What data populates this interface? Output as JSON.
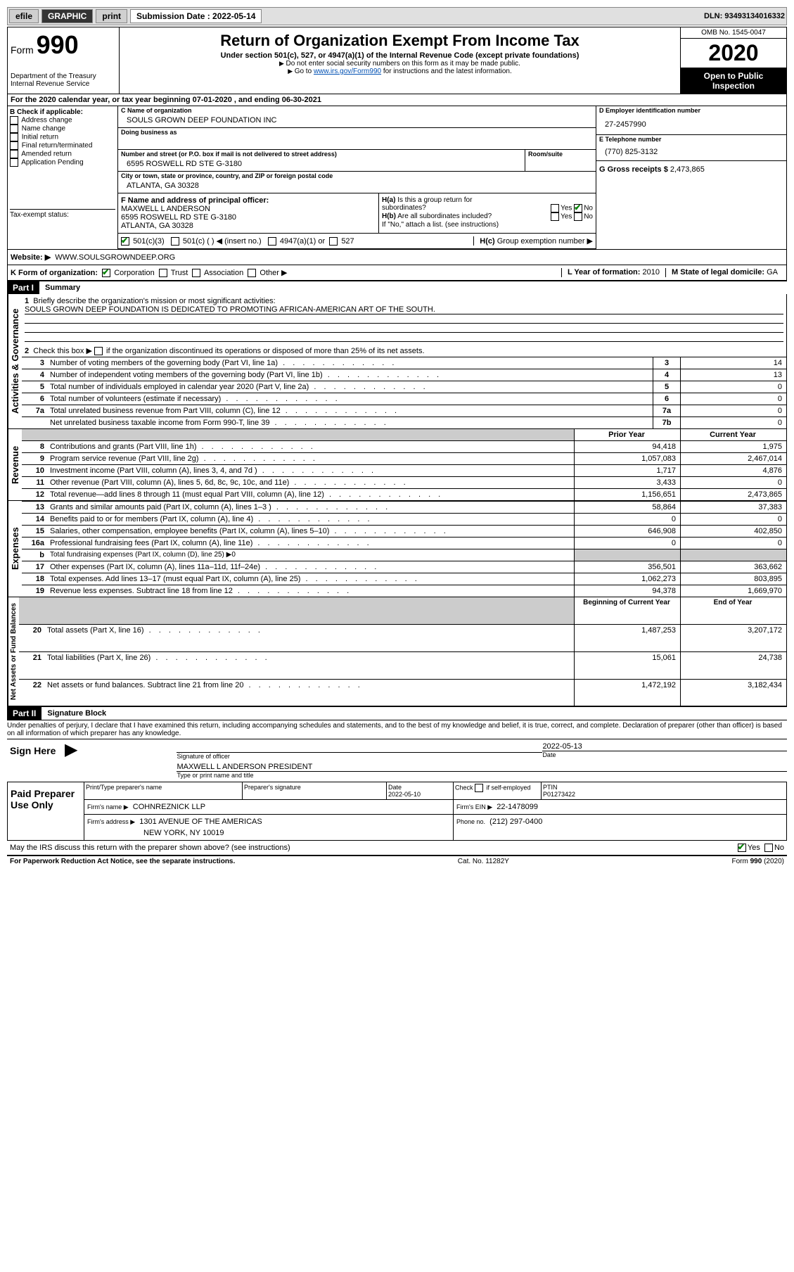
{
  "top": {
    "efile": "efile",
    "graphic": "GRAPHIC",
    "print": "print",
    "sub_label": "Submission Date : 2022-05-14",
    "dln": "DLN: 93493134016332"
  },
  "header": {
    "form": "Form",
    "num": "990",
    "dept": "Department of the Treasury",
    "irs": "Internal Revenue Service",
    "title": "Return of Organization Exempt From Income Tax",
    "sub": "Under section 501(c), 527, or 4947(a)(1) of the Internal Revenue Code (except private foundations)",
    "note1": "Do not enter social security numbers on this form as it may be made public.",
    "note2_pre": "Go to ",
    "note2_link": "www.irs.gov/Form990",
    "note2_post": " for instructions and the latest information.",
    "omb": "OMB No. 1545-0047",
    "year": "2020",
    "insp": "Open to Public Inspection"
  },
  "line_a": "For the 2020 calendar year, or tax year beginning 07-01-2020   , and ending 06-30-2021",
  "box_b": {
    "label": "B Check if applicable:",
    "opts": [
      "Address change",
      "Name change",
      "Initial return",
      "Final return/terminated",
      "Amended return",
      "Application Pending"
    ]
  },
  "box_c": {
    "name_label": "C Name of organization",
    "name": "SOULS GROWN DEEP FOUNDATION INC",
    "dba_label": "Doing business as",
    "street_label": "Number and street (or P.O. box if mail is not delivered to street address)",
    "room_label": "Room/suite",
    "street": "6595 ROSWELL RD STE G-3180",
    "city_label": "City or town, state or province, country, and ZIP or foreign postal code",
    "city": "ATLANTA, GA  30328"
  },
  "box_d": {
    "label": "D Employer identification number",
    "val": "27-2457990"
  },
  "box_e": {
    "label": "E Telephone number",
    "val": "(770) 825-3132"
  },
  "box_g": {
    "label": "G Gross receipts $",
    "val": "2,473,865"
  },
  "box_f": {
    "label": "F Name and address of principal officer:",
    "name": "MAXWELL L ANDERSON",
    "line2": "6595 ROSWELL RD STE G-3180",
    "line3": "ATLANTA, GA  30328"
  },
  "box_h": {
    "a": "Is this a group return for",
    "a2": "subordinates?",
    "b": "Are all subordinates included?",
    "note": "If \"No,\" attach a list. (see instructions)",
    "c": "Group exemption number ▶"
  },
  "tax_exempt": {
    "label": "Tax-exempt status:",
    "opt1": "501(c)(3)",
    "opt2": "501(c) (  ) ◀ (insert no.)",
    "opt3": "4947(a)(1) or",
    "opt4": "527"
  },
  "website": {
    "label": "Website: ▶",
    "val": "WWW.SOULSGROWNDEEP.ORG"
  },
  "box_k": {
    "label": "K Form of organization:",
    "opts": [
      "Corporation",
      "Trust",
      "Association",
      "Other ▶"
    ]
  },
  "box_l": {
    "label": "L Year of formation:",
    "val": "2010"
  },
  "box_m": {
    "label": "M State of legal domicile:",
    "val": "GA"
  },
  "part1": {
    "header": "Part I",
    "title": "Summary",
    "q1": "Briefly describe the organization's mission or most significant activities:",
    "q1_val": "SOULS GROWN DEEP FOUNDATION IS DEDICATED TO PROMOTING AFRICAN-AMERICAN ART OF THE SOUTH.",
    "q2": "Check this box ▶    if the organization discontinued its operations or disposed of more than 25% of its net assets.",
    "section_ag": "Activities & Governance",
    "section_rev": "Revenue",
    "section_exp": "Expenses",
    "section_net": "Net Assets or Fund Balances",
    "col_prior": "Prior Year",
    "col_current": "Current Year",
    "col_begin": "Beginning of Current Year",
    "col_end": "End of Year",
    "rows_ag": [
      {
        "n": "3",
        "t": "Number of voting members of the governing body (Part VI, line 1a)",
        "c": "3",
        "v": "14"
      },
      {
        "n": "4",
        "t": "Number of independent voting members of the governing body (Part VI, line 1b)",
        "c": "4",
        "v": "13"
      },
      {
        "n": "5",
        "t": "Total number of individuals employed in calendar year 2020 (Part V, line 2a)",
        "c": "5",
        "v": "0"
      },
      {
        "n": "6",
        "t": "Total number of volunteers (estimate if necessary)",
        "c": "6",
        "v": "0"
      },
      {
        "n": "7a",
        "t": "Total unrelated business revenue from Part VIII, column (C), line 12",
        "c": "7a",
        "v": "0"
      },
      {
        "n": "",
        "t": "Net unrelated business taxable income from Form 990-T, line 39",
        "c": "7b",
        "v": "0"
      }
    ],
    "rows_rev": [
      {
        "n": "8",
        "t": "Contributions and grants (Part VIII, line 1h)",
        "p": "94,418",
        "c": "1,975"
      },
      {
        "n": "9",
        "t": "Program service revenue (Part VIII, line 2g)",
        "p": "1,057,083",
        "c": "2,467,014"
      },
      {
        "n": "10",
        "t": "Investment income (Part VIII, column (A), lines 3, 4, and 7d )",
        "p": "1,717",
        "c": "4,876"
      },
      {
        "n": "11",
        "t": "Other revenue (Part VIII, column (A), lines 5, 6d, 8c, 9c, 10c, and 11e)",
        "p": "3,433",
        "c": "0"
      },
      {
        "n": "12",
        "t": "Total revenue—add lines 8 through 11 (must equal Part VIII, column (A), line 12)",
        "p": "1,156,651",
        "c": "2,473,865"
      }
    ],
    "rows_exp": [
      {
        "n": "13",
        "t": "Grants and similar amounts paid (Part IX, column (A), lines 1–3 )",
        "p": "58,864",
        "c": "37,383"
      },
      {
        "n": "14",
        "t": "Benefits paid to or for members (Part IX, column (A), line 4)",
        "p": "0",
        "c": "0"
      },
      {
        "n": "15",
        "t": "Salaries, other compensation, employee benefits (Part IX, column (A), lines 5–10)",
        "p": "646,908",
        "c": "402,850"
      },
      {
        "n": "16a",
        "t": "Professional fundraising fees (Part IX, column (A), line 11e)",
        "p": "0",
        "c": "0"
      },
      {
        "n": "b",
        "t": "Total fundraising expenses (Part IX, column (D), line 25) ▶0",
        "shaded": true
      },
      {
        "n": "17",
        "t": "Other expenses (Part IX, column (A), lines 11a–11d, 11f–24e)",
        "p": "356,501",
        "c": "363,662"
      },
      {
        "n": "18",
        "t": "Total expenses. Add lines 13–17 (must equal Part IX, column (A), line 25)",
        "p": "1,062,273",
        "c": "803,895"
      },
      {
        "n": "19",
        "t": "Revenue less expenses. Subtract line 18 from line 12",
        "p": "94,378",
        "c": "1,669,970"
      }
    ],
    "rows_net": [
      {
        "n": "20",
        "t": "Total assets (Part X, line 16)",
        "p": "1,487,253",
        "c": "3,207,172"
      },
      {
        "n": "21",
        "t": "Total liabilities (Part X, line 26)",
        "p": "15,061",
        "c": "24,738"
      },
      {
        "n": "22",
        "t": "Net assets or fund balances. Subtract line 21 from line 20",
        "p": "1,472,192",
        "c": "3,182,434"
      }
    ]
  },
  "part2": {
    "header": "Part II",
    "title": "Signature Block",
    "perjury": "Under penalties of perjury, I declare that I have examined this return, including accompanying schedules and statements, and to the best of my knowledge and belief, it is true, correct, and complete. Declaration of preparer (other than officer) is based on all information of which preparer has any knowledge.",
    "sign_here": "Sign Here",
    "sig_label": "Signature of officer",
    "date_label": "Date",
    "sig_date": "2022-05-13",
    "name_label": "Type or print name and title",
    "name": "MAXWELL L ANDERSON  PRESIDENT",
    "paid": "Paid Preparer Use Only",
    "prep_name_label": "Print/Type preparer's name",
    "prep_sig_label": "Preparer's signature",
    "prep_date_label": "Date",
    "prep_date": "2022-05-10",
    "check_label": "Check      if self-employed",
    "ptin_label": "PTIN",
    "ptin": "P01273422",
    "firm_name_label": "Firm's name   ▶",
    "firm_name": "COHNREZNICK LLP",
    "firm_ein_label": "Firm's EIN ▶",
    "firm_ein": "22-1478099",
    "firm_addr_label": "Firm's address ▶",
    "firm_addr1": "1301 AVENUE OF THE AMERICAS",
    "firm_addr2": "NEW YORK, NY  10019",
    "phone_label": "Phone no.",
    "phone": "(212) 297-0400",
    "discuss": "May the IRS discuss this return with the preparer shown above? (see instructions)"
  },
  "footer": {
    "left": "For Paperwork Reduction Act Notice, see the separate instructions.",
    "center": "Cat. No. 11282Y",
    "right": "Form 990 (2020)"
  }
}
